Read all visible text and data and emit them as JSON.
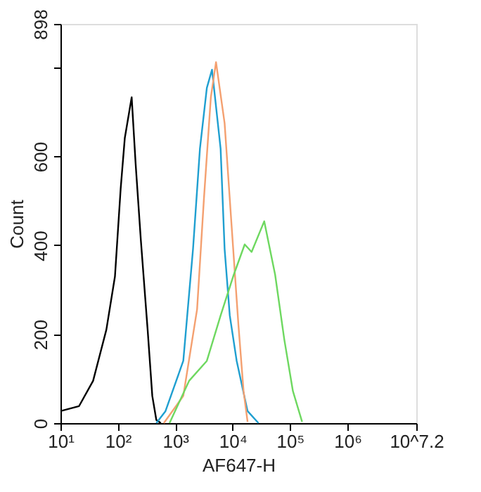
{
  "chart_data": {
    "type": "line",
    "xlabel": "AF647-H",
    "ylabel": "Count",
    "log": "x",
    "grid": false,
    "marker": "none",
    "line_style": "solid",
    "xlim": [
      10,
      15848932
    ],
    "ylim": [
      0,
      898
    ],
    "xticks": [
      {
        "value": 10,
        "label": "10¹"
      },
      {
        "value": 100,
        "label": "10²"
      },
      {
        "value": 1000,
        "label": "10³"
      },
      {
        "value": 10000,
        "label": "10⁴"
      },
      {
        "value": 100000,
        "label": "10⁵"
      },
      {
        "value": 1000000,
        "label": "10⁶"
      },
      {
        "value": 15848932,
        "label": "10^7.2"
      }
    ],
    "yticks": [
      0,
      200,
      400,
      600,
      {
        "value": 800,
        "label": null
      },
      898
    ],
    "series": [
      {
        "color": "#000000",
        "x": [
          10,
          21,
          37,
          63,
          89,
          112,
          132,
          174,
          204,
          251,
          331,
          398,
          468,
          562
        ],
        "values": [
          27,
          38,
          95,
          210,
          330,
          528,
          641,
          733,
          583,
          413,
          208,
          61,
          7,
          0
        ]
      },
      {
        "color": "#1f9fd0",
        "x": [
          468,
          676,
          1380,
          2040,
          2690,
          3550,
          4370,
          6170,
          7240,
          8910,
          11750,
          18200,
          28200
        ],
        "values": [
          0,
          27,
          140,
          392,
          617,
          754,
          795,
          617,
          392,
          242,
          140,
          27,
          0
        ]
      },
      {
        "color": "#f4a070",
        "x": [
          631,
          1380,
          2400,
          3160,
          4170,
          5130,
          7240,
          9550,
          12590,
          15490,
          18200
        ],
        "values": [
          0,
          61,
          256,
          505,
          733,
          812,
          675,
          447,
          222,
          72,
          3
        ]
      },
      {
        "color": "#6ed860",
        "x": [
          794,
          1740,
          3550,
          6170,
          10470,
          16220,
          21380,
          35480,
          54950,
          79430,
          112200,
          162200
        ],
        "values": [
          0,
          95,
          140,
          242,
          334,
          402,
          385,
          454,
          334,
          188,
          72,
          3
        ]
      }
    ]
  }
}
